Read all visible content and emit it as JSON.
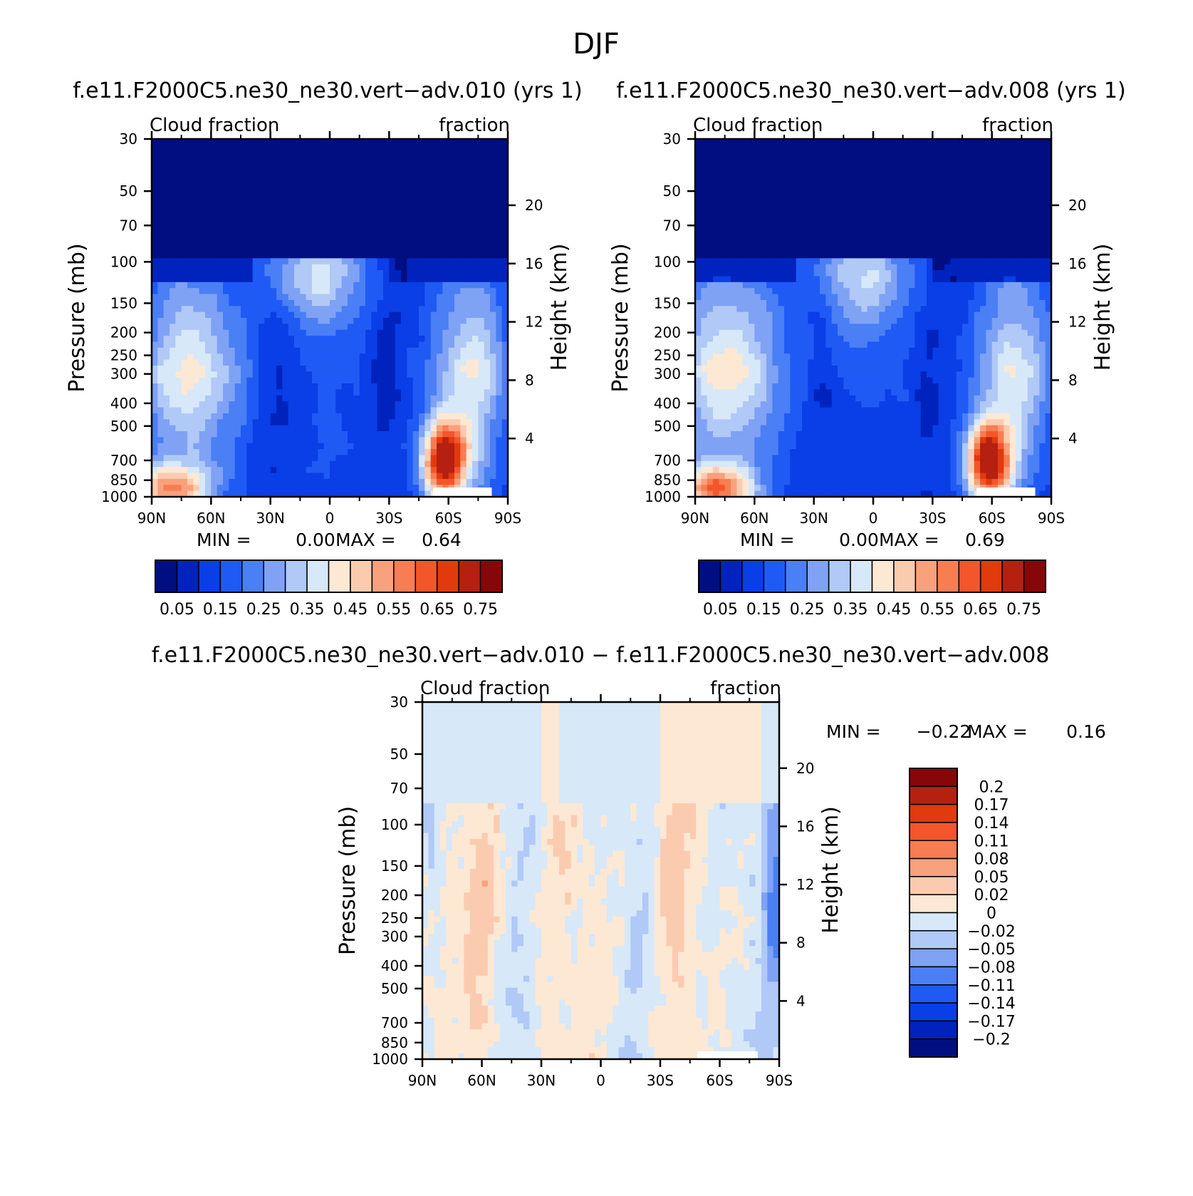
{
  "figure_title": "DJF",
  "panels": [
    {
      "id": "p1",
      "title": "f.e11.F2000C5.ne30_ne30.vert−adv.010 (yrs 1)",
      "left_string": "Cloud fraction",
      "right_string": "fraction",
      "ylabel": "Pressure (mb)",
      "right_ylabel": "Height (km)",
      "min_label": "MIN =",
      "min_value": "0.00",
      "max_label": "MAX =",
      "max_value": "0.64"
    },
    {
      "id": "p2",
      "title": "f.e11.F2000C5.ne30_ne30.vert−adv.008 (yrs 1)",
      "left_string": "Cloud fraction",
      "right_string": "fraction",
      "ylabel": "Pressure (mb)",
      "right_ylabel": "Height (km)",
      "min_label": "MIN =",
      "min_value": "0.00",
      "max_label": "MAX =",
      "max_value": "0.69"
    },
    {
      "id": "p3",
      "title": "f.e11.F2000C5.ne30_ne30.vert−adv.010 − f.e11.F2000C5.ne30_ne30.vert−adv.008",
      "left_string": "Cloud fraction",
      "right_string": "fraction",
      "ylabel": "Pressure (mb)",
      "right_ylabel": "Height (km)",
      "min_label": "MIN =",
      "min_value": "−0.22",
      "max_label": "MAX =",
      "max_value": "0.16"
    }
  ],
  "chart_data": [
    {
      "type": "heatmap",
      "panel": "p1",
      "x_ticks": [
        "90N",
        "60N",
        "30N",
        "0",
        "30S",
        "60S",
        "90S"
      ],
      "x_values": [
        90,
        60,
        30,
        0,
        -30,
        -60,
        -90
      ],
      "y_ticks": [
        "30",
        "50",
        "70",
        "100",
        "150",
        "200",
        "250",
        "300",
        "400",
        "500",
        "700",
        "850",
        "1000"
      ],
      "y_values": [
        30,
        50,
        70,
        100,
        150,
        200,
        250,
        300,
        400,
        500,
        700,
        850,
        1000
      ],
      "y_scale": "log",
      "right_ticks": [
        "20",
        "16",
        "12",
        "8",
        "4"
      ],
      "right_values": [
        20,
        16,
        12,
        8,
        4
      ],
      "levels": [
        0.05,
        0.1,
        0.15,
        0.2,
        0.25,
        0.3,
        0.35,
        0.4,
        0.45,
        0.5,
        0.55,
        0.6,
        0.65,
        0.7,
        0.75
      ],
      "colors": [
        "#000e82",
        "#0023bd",
        "#0a3ee6",
        "#1f5af5",
        "#4a7ff5",
        "#7fa2f5",
        "#b0c9f7",
        "#d7e8f8",
        "#fde8d4",
        "#fbcbb0",
        "#f8a17c",
        "#f77d52",
        "#f5552a",
        "#e13a0d",
        "#b52010",
        "#860707"
      ],
      "colorbar_labels": [
        "0.05",
        "0.15",
        "0.25",
        "0.35",
        "0.45",
        "0.55",
        "0.65",
        "0.75"
      ],
      "min": 0.0,
      "max": 0.64
    },
    {
      "type": "heatmap",
      "panel": "p2",
      "x_ticks": [
        "90N",
        "60N",
        "30N",
        "0",
        "30S",
        "60S",
        "90S"
      ],
      "x_values": [
        90,
        60,
        30,
        0,
        -30,
        -60,
        -90
      ],
      "y_ticks": [
        "30",
        "50",
        "70",
        "100",
        "150",
        "200",
        "250",
        "300",
        "400",
        "500",
        "700",
        "850",
        "1000"
      ],
      "y_values": [
        30,
        50,
        70,
        100,
        150,
        200,
        250,
        300,
        400,
        500,
        700,
        850,
        1000
      ],
      "y_scale": "log",
      "right_ticks": [
        "20",
        "16",
        "12",
        "8",
        "4"
      ],
      "right_values": [
        20,
        16,
        12,
        8,
        4
      ],
      "levels": [
        0.05,
        0.1,
        0.15,
        0.2,
        0.25,
        0.3,
        0.35,
        0.4,
        0.45,
        0.5,
        0.55,
        0.6,
        0.65,
        0.7,
        0.75
      ],
      "colors": [
        "#000e82",
        "#0023bd",
        "#0a3ee6",
        "#1f5af5",
        "#4a7ff5",
        "#7fa2f5",
        "#b0c9f7",
        "#d7e8f8",
        "#fde8d4",
        "#fbcbb0",
        "#f8a17c",
        "#f77d52",
        "#f5552a",
        "#e13a0d",
        "#b52010",
        "#860707"
      ],
      "colorbar_labels": [
        "0.05",
        "0.15",
        "0.25",
        "0.35",
        "0.45",
        "0.55",
        "0.65",
        "0.75"
      ],
      "min": 0.0,
      "max": 0.69
    },
    {
      "type": "heatmap",
      "panel": "p3",
      "x_ticks": [
        "90N",
        "60N",
        "30N",
        "0",
        "30S",
        "60S",
        "90S"
      ],
      "x_values": [
        90,
        60,
        30,
        0,
        -30,
        -60,
        -90
      ],
      "y_ticks": [
        "30",
        "50",
        "70",
        "100",
        "150",
        "200",
        "250",
        "300",
        "400",
        "500",
        "700",
        "850",
        "1000"
      ],
      "y_values": [
        30,
        50,
        70,
        100,
        150,
        200,
        250,
        300,
        400,
        500,
        700,
        850,
        1000
      ],
      "y_scale": "log",
      "right_ticks": [
        "20",
        "16",
        "12",
        "8",
        "4"
      ],
      "right_values": [
        20,
        16,
        12,
        8,
        4
      ],
      "levels": [
        -0.2,
        -0.17,
        -0.14,
        -0.11,
        -0.08,
        -0.05,
        -0.02,
        0,
        0.02,
        0.05,
        0.08,
        0.11,
        0.14,
        0.17,
        0.2
      ],
      "colors": [
        "#000e82",
        "#0023bd",
        "#0a3ee6",
        "#1f5af5",
        "#4a7ff5",
        "#7fa2f5",
        "#b0c9f7",
        "#d7e8f8",
        "#fde8d4",
        "#fbcbb0",
        "#f8a17c",
        "#f77d52",
        "#f5552a",
        "#e13a0d",
        "#b52010",
        "#860707"
      ],
      "colorbar_labels": [
        "0.2",
        "0.17",
        "0.14",
        "0.11",
        "0.08",
        "0.05",
        "0.02",
        "0",
        "−0.02",
        "−0.05",
        "−0.08",
        "−0.11",
        "−0.14",
        "−0.17",
        "−0.2"
      ],
      "min": -0.22,
      "max": 0.16
    }
  ]
}
